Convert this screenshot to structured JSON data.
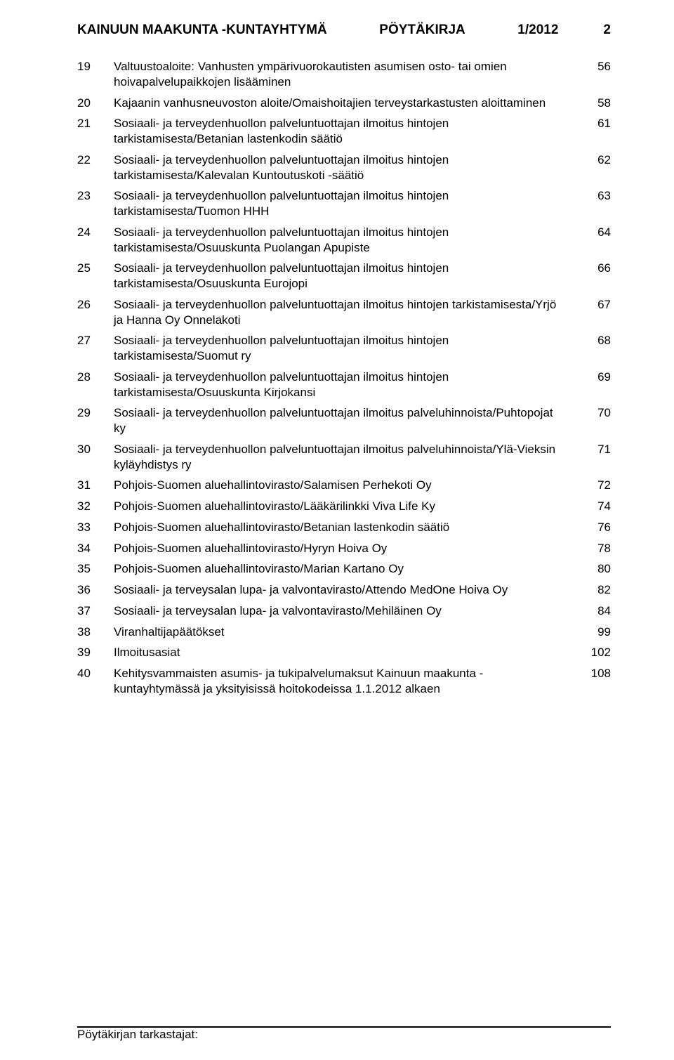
{
  "header": {
    "left": "KAINUUN MAAKUNTA -KUNTAYHTYMÄ",
    "mid": "PÖYTÄKIRJA",
    "year": "1/2012",
    "pagenum": "2"
  },
  "footer": {
    "label": "Pöytäkirjan tarkastajat:"
  },
  "agenda": {
    "items": [
      {
        "num": "19",
        "text": "Valtuustoaloite: Vanhusten ympärivuorokautisten asumisen osto- tai omien hoivapalvelupaikkojen lisääminen",
        "page": "56"
      },
      {
        "num": "20",
        "text": "Kajaanin vanhusneuvoston aloite/Omaishoitajien terveystarkastusten aloittaminen",
        "page": "58"
      },
      {
        "num": "21",
        "text": "Sosiaali- ja terveydenhuollon palveluntuottajan ilmoitus hintojen tarkistamisesta/Betanian lastenkodin säätiö",
        "page": "61"
      },
      {
        "num": "22",
        "text": "Sosiaali- ja terveydenhuollon palveluntuottajan ilmoitus hintojen tarkistamisesta/Kalevalan Kuntoutuskoti -säätiö",
        "page": "62"
      },
      {
        "num": "23",
        "text": "Sosiaali- ja terveydenhuollon palveluntuottajan ilmoitus hintojen tarkistamisesta/Tuomon HHH",
        "page": "63"
      },
      {
        "num": "24",
        "text": "Sosiaali- ja terveydenhuollon palveluntuottajan ilmoitus hintojen tarkistamisesta/Osuuskunta Puolangan Apupiste",
        "page": "64"
      },
      {
        "num": "25",
        "text": "Sosiaali- ja terveydenhuollon palveluntuottajan ilmoitus hintojen tarkistamisesta/Osuuskunta Eurojopi",
        "page": "66"
      },
      {
        "num": "26",
        "text": "Sosiaali- ja terveydenhuollon palveluntuottajan ilmoitus hintojen tarkistamisesta/Yrjö ja Hanna Oy Onnelakoti",
        "page": "67"
      },
      {
        "num": "27",
        "text": "Sosiaali- ja terveydenhuollon palveluntuottajan ilmoitus hintojen tarkistamisesta/Suomut ry",
        "page": "68"
      },
      {
        "num": "28",
        "text": "Sosiaali- ja terveydenhuollon palveluntuottajan ilmoitus hintojen tarkistamisesta/Osuuskunta Kirjokansi",
        "page": "69"
      },
      {
        "num": "29",
        "text": "Sosiaali- ja terveydenhuollon palveluntuottajan ilmoitus palveluhinnoista/Puhtopojat ky",
        "page": "70"
      },
      {
        "num": "30",
        "text": "Sosiaali- ja terveydenhuollon palveluntuottajan ilmoitus palveluhinnoista/Ylä-Vieksin kyläyhdistys ry",
        "page": "71"
      },
      {
        "num": "31",
        "text": "Pohjois-Suomen aluehallintovirasto/Salamisen Perhekoti Oy",
        "page": "72"
      },
      {
        "num": "32",
        "text": "Pohjois-Suomen aluehallintovirasto/Lääkärilinkki Viva Life Ky",
        "page": "74"
      },
      {
        "num": "33",
        "text": "Pohjois-Suomen aluehallintovirasto/Betanian lastenkodin säätiö",
        "page": "76"
      },
      {
        "num": "34",
        "text": "Pohjois-Suomen aluehallintovirasto/Hyryn Hoiva Oy",
        "page": "78"
      },
      {
        "num": "35",
        "text": "Pohjois-Suomen aluehallintovirasto/Marian Kartano Oy",
        "page": "80"
      },
      {
        "num": "36",
        "text": "Sosiaali- ja terveysalan lupa- ja valvontavirasto/Attendo MedOne Hoiva Oy",
        "page": "82"
      },
      {
        "num": "37",
        "text": "Sosiaali- ja terveysalan lupa- ja valvontavirasto/Mehiläinen Oy",
        "page": "84"
      },
      {
        "num": "38",
        "text": "Viranhaltijapäätökset",
        "page": "99"
      },
      {
        "num": "39",
        "text": "Ilmoitusasiat",
        "page": "102"
      },
      {
        "num": "40",
        "text": "Kehitysvammaisten asumis- ja tukipalvelumaksut Kainuun maakunta -kuntayhtymässä ja yksityisissä hoitokodeissa 1.1.2012 alkaen",
        "page": "108"
      }
    ]
  }
}
